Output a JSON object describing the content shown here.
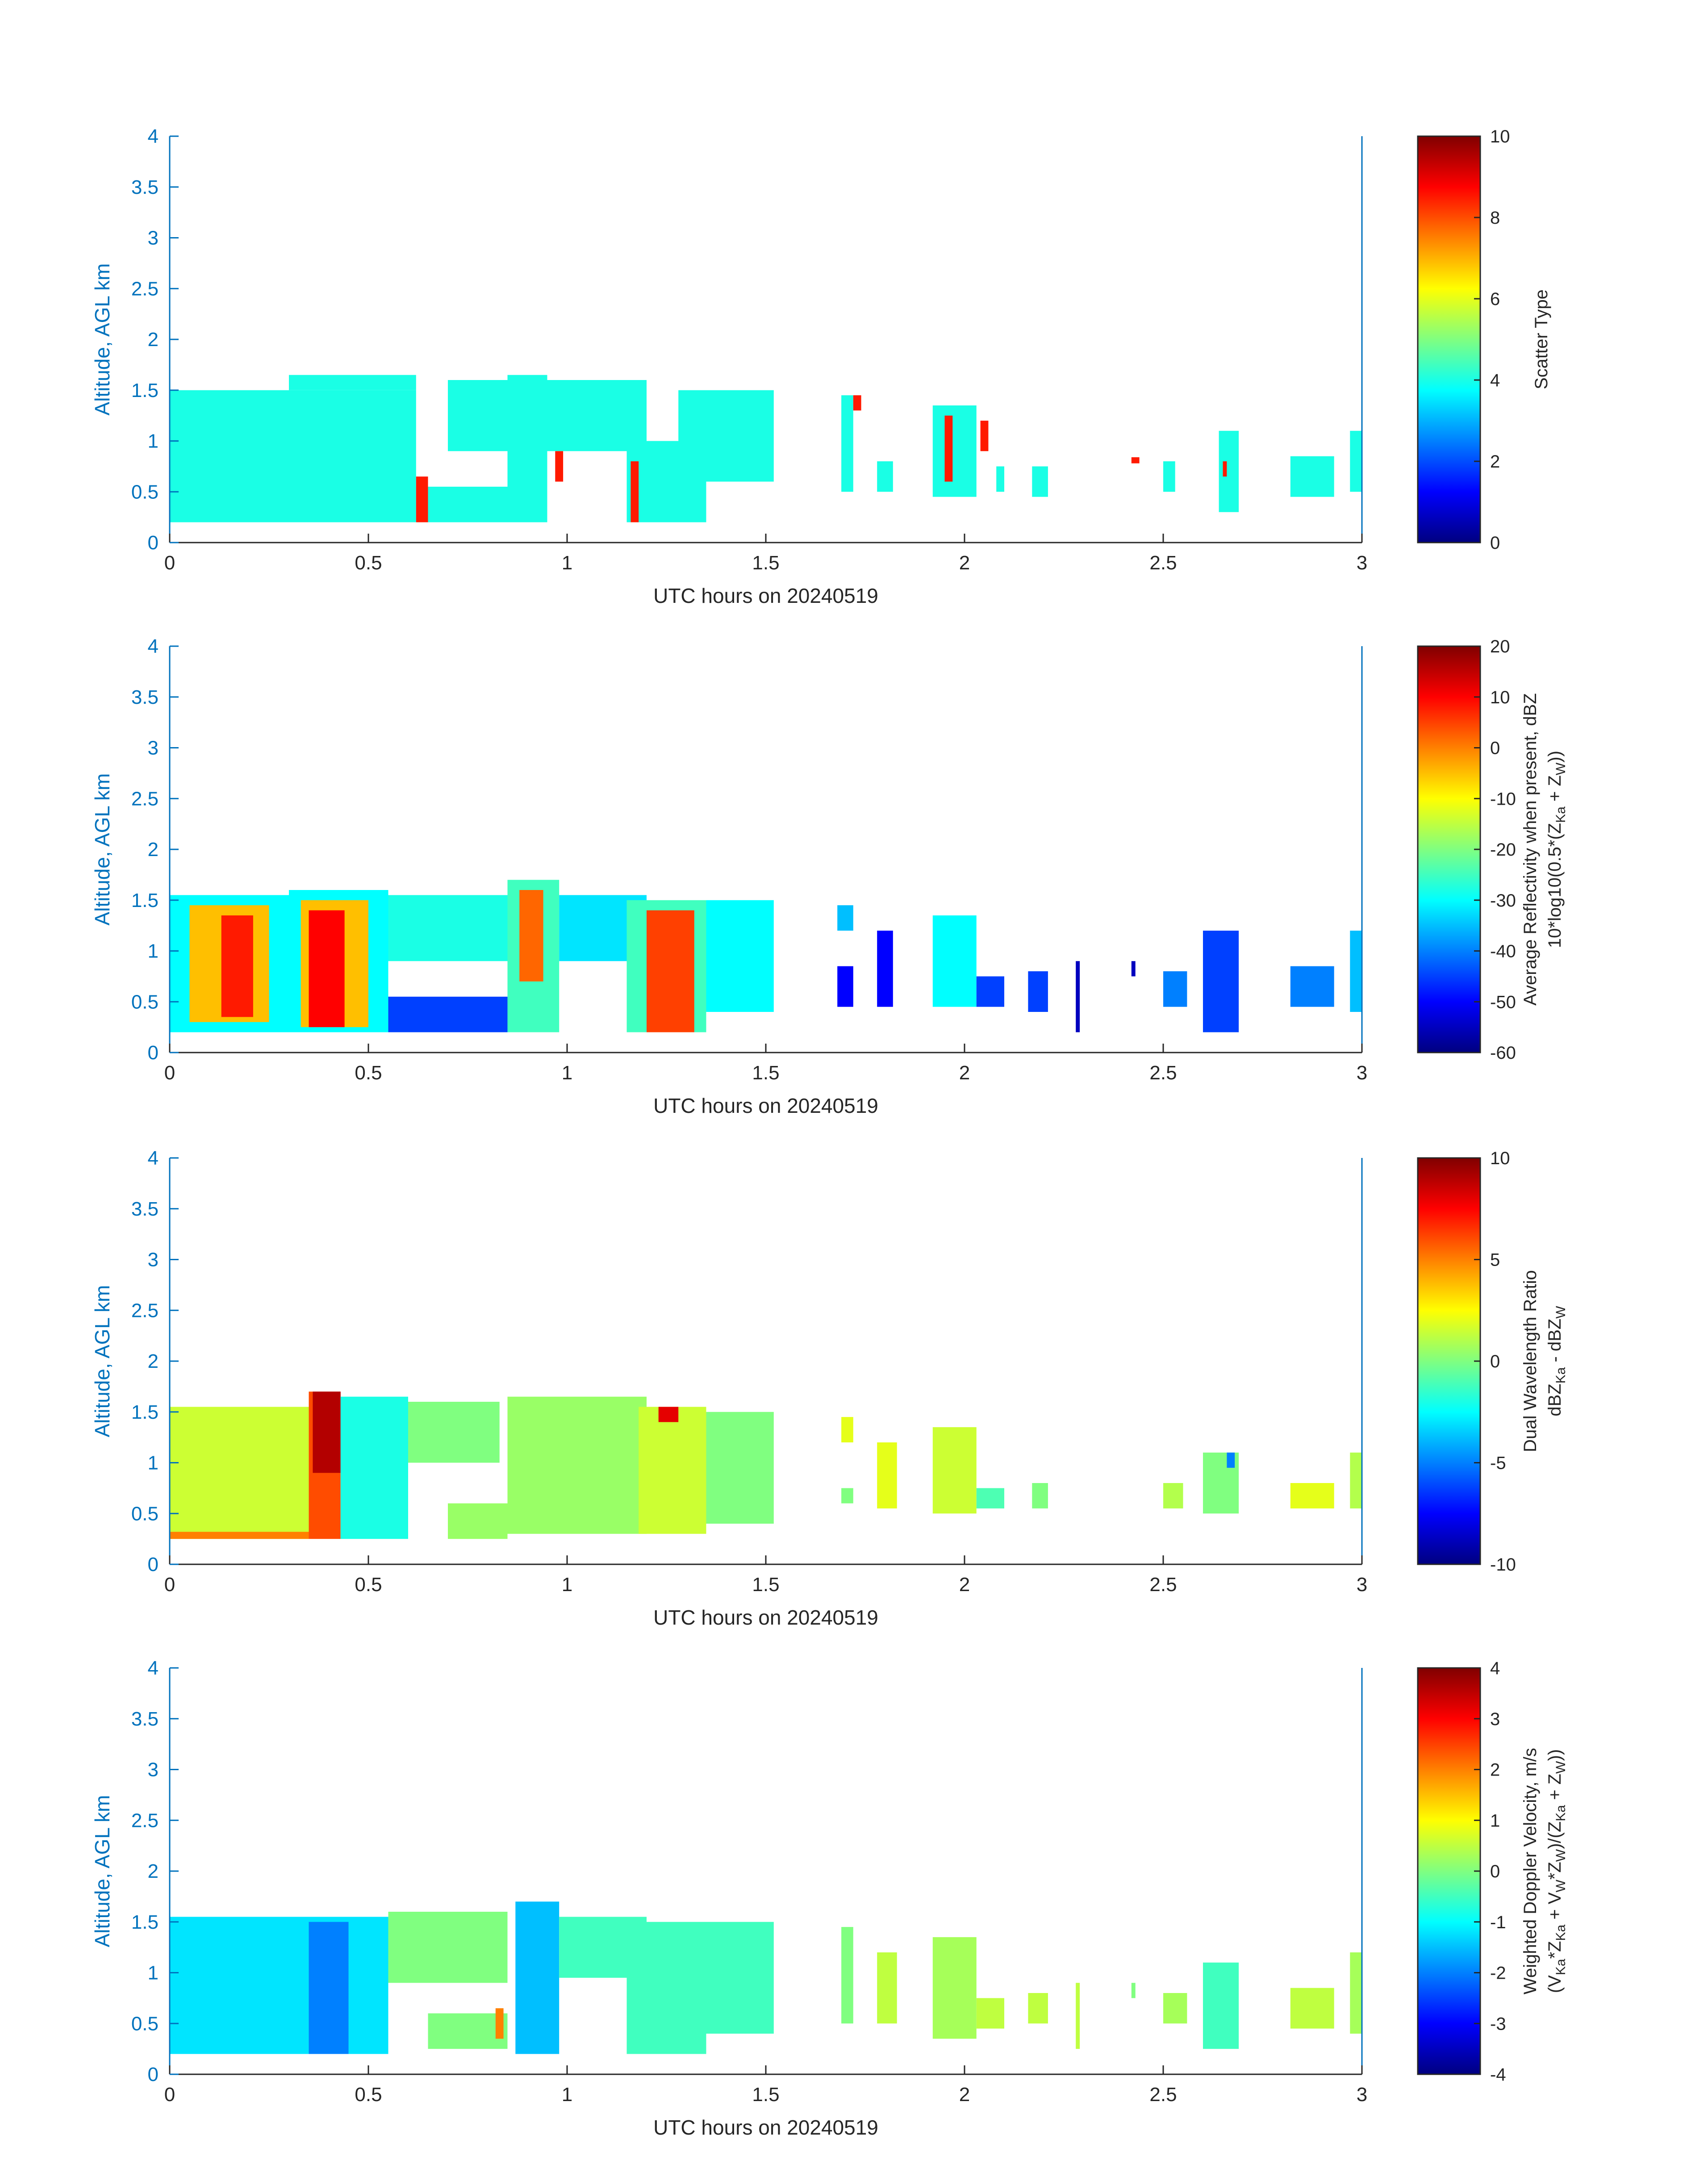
{
  "figure": {
    "accent_color": "#0072BD",
    "axis_text_color": "#262626"
  },
  "chart_data": [
    {
      "type": "heatmap",
      "xlabel": "UTC hours on 20240519",
      "ylabel": "Altitude, AGL km",
      "xlim": [
        0,
        3
      ],
      "ylim": [
        0,
        4
      ],
      "xticks": [
        "0",
        "0.5",
        "1",
        "1.5",
        "2",
        "2.5",
        "3"
      ],
      "yticks": [
        "0",
        "0.5",
        "1",
        "1.5",
        "2",
        "2.5",
        "3",
        "3.5",
        "4"
      ],
      "colorbar": {
        "label_lines": [
          "Scatter Type"
        ],
        "range": [
          0,
          10
        ],
        "ticks": [
          "0",
          "2",
          "4",
          "6",
          "8",
          "10"
        ],
        "colormap": "jet"
      },
      "regions": [
        {
          "x0": 0.0,
          "x1": 0.62,
          "y0": 0.2,
          "y1": 1.5,
          "value": 4
        },
        {
          "x0": 0.3,
          "x1": 0.62,
          "y0": 1.5,
          "y1": 1.65,
          "value": 4
        },
        {
          "x0": 0.62,
          "x1": 0.85,
          "y0": 0.2,
          "y1": 0.55,
          "value": 4
        },
        {
          "x0": 0.7,
          "x1": 0.88,
          "y0": 0.9,
          "y1": 1.6,
          "value": 4
        },
        {
          "x0": 0.85,
          "x1": 0.95,
          "y0": 0.2,
          "y1": 1.65,
          "value": 4
        },
        {
          "x0": 0.95,
          "x1": 1.2,
          "y0": 0.9,
          "y1": 1.6,
          "value": 4
        },
        {
          "x0": 1.15,
          "x1": 1.35,
          "y0": 0.2,
          "y1": 1.0,
          "value": 4
        },
        {
          "x0": 1.28,
          "x1": 1.52,
          "y0": 0.6,
          "y1": 1.5,
          "value": 4
        },
        {
          "x0": 1.69,
          "x1": 1.72,
          "y0": 0.5,
          "y1": 1.45,
          "value": 4
        },
        {
          "x0": 1.78,
          "x1": 1.82,
          "y0": 0.5,
          "y1": 0.8,
          "value": 4
        },
        {
          "x0": 1.92,
          "x1": 2.03,
          "y0": 0.45,
          "y1": 1.35,
          "value": 4
        },
        {
          "x0": 2.08,
          "x1": 2.1,
          "y0": 0.5,
          "y1": 0.75,
          "value": 4
        },
        {
          "x0": 2.17,
          "x1": 2.21,
          "y0": 0.45,
          "y1": 0.75,
          "value": 4
        },
        {
          "x0": 2.5,
          "x1": 2.53,
          "y0": 0.5,
          "y1": 0.8,
          "value": 4
        },
        {
          "x0": 2.64,
          "x1": 2.69,
          "y0": 0.3,
          "y1": 1.1,
          "value": 4
        },
        {
          "x0": 2.82,
          "x1": 2.93,
          "y0": 0.45,
          "y1": 0.85,
          "value": 4
        },
        {
          "x0": 2.97,
          "x1": 3.0,
          "y0": 0.5,
          "y1": 1.1,
          "value": 4
        },
        {
          "x0": 0.62,
          "x1": 0.65,
          "y0": 0.2,
          "y1": 0.65,
          "value": 8.5
        },
        {
          "x0": 0.97,
          "x1": 0.99,
          "y0": 0.6,
          "y1": 0.9,
          "value": 8.5
        },
        {
          "x0": 1.16,
          "x1": 1.18,
          "y0": 0.2,
          "y1": 0.8,
          "value": 8.5
        },
        {
          "x0": 1.72,
          "x1": 1.74,
          "y0": 1.3,
          "y1": 1.45,
          "value": 8.5
        },
        {
          "x0": 1.95,
          "x1": 1.97,
          "y0": 0.6,
          "y1": 1.25,
          "value": 8.5
        },
        {
          "x0": 2.04,
          "x1": 2.06,
          "y0": 0.9,
          "y1": 1.2,
          "value": 8.5
        },
        {
          "x0": 2.42,
          "x1": 2.44,
          "y0": 0.78,
          "y1": 0.84,
          "value": 8.5
        },
        {
          "x0": 2.65,
          "x1": 2.66,
          "y0": 0.65,
          "y1": 0.8,
          "value": 8.5
        }
      ]
    },
    {
      "type": "heatmap",
      "xlabel": "UTC hours on 20240519",
      "ylabel": "Altitude, AGL km",
      "xlim": [
        0,
        3
      ],
      "ylim": [
        0,
        4
      ],
      "xticks": [
        "0",
        "0.5",
        "1",
        "1.5",
        "2",
        "2.5",
        "3"
      ],
      "yticks": [
        "0",
        "0.5",
        "1",
        "1.5",
        "2",
        "2.5",
        "3",
        "3.5",
        "4"
      ],
      "colorbar": {
        "label_lines": [
          "Average Reflectivity when present, dBZ",
          "10*log10(0.5*(Z",
          "Ka",
          " + Z",
          "W",
          "))"
        ],
        "range": [
          -60,
          20
        ],
        "ticks": [
          "-60",
          "-50",
          "-40",
          "-30",
          "-20",
          "-10",
          "0",
          "10",
          "20"
        ],
        "colormap": "jet"
      },
      "regions": [
        {
          "x0": 0.0,
          "x1": 0.3,
          "y0": 0.2,
          "y1": 1.55,
          "value": -30
        },
        {
          "x0": 0.05,
          "x1": 0.25,
          "y0": 0.3,
          "y1": 1.45,
          "value": -5
        },
        {
          "x0": 0.13,
          "x1": 0.21,
          "y0": 0.35,
          "y1": 1.35,
          "value": 8
        },
        {
          "x0": 0.3,
          "x1": 0.55,
          "y0": 0.2,
          "y1": 1.6,
          "value": -30
        },
        {
          "x0": 0.33,
          "x1": 0.5,
          "y0": 0.25,
          "y1": 1.5,
          "value": -5
        },
        {
          "x0": 0.35,
          "x1": 0.44,
          "y0": 0.25,
          "y1": 1.4,
          "value": 10
        },
        {
          "x0": 0.55,
          "x1": 0.85,
          "y0": 0.9,
          "y1": 1.55,
          "value": -28
        },
        {
          "x0": 0.55,
          "x1": 0.85,
          "y0": 0.2,
          "y1": 0.55,
          "value": -45
        },
        {
          "x0": 0.85,
          "x1": 0.98,
          "y0": 0.2,
          "y1": 1.7,
          "value": -25
        },
        {
          "x0": 0.88,
          "x1": 0.94,
          "y0": 0.7,
          "y1": 1.6,
          "value": 2
        },
        {
          "x0": 0.98,
          "x1": 1.2,
          "y0": 0.9,
          "y1": 1.55,
          "value": -32
        },
        {
          "x0": 1.15,
          "x1": 1.35,
          "y0": 0.2,
          "y1": 1.5,
          "value": -25
        },
        {
          "x0": 1.2,
          "x1": 1.32,
          "y0": 0.2,
          "y1": 1.4,
          "value": 5
        },
        {
          "x0": 1.35,
          "x1": 1.52,
          "y0": 0.4,
          "y1": 1.5,
          "value": -30
        },
        {
          "x0": 1.68,
          "x1": 1.72,
          "y0": 1.2,
          "y1": 1.45,
          "value": -35
        },
        {
          "x0": 1.68,
          "x1": 1.72,
          "y0": 0.45,
          "y1": 0.85,
          "value": -50
        },
        {
          "x0": 1.78,
          "x1": 1.82,
          "y0": 0.45,
          "y1": 1.2,
          "value": -50
        },
        {
          "x0": 1.92,
          "x1": 2.03,
          "y0": 0.45,
          "y1": 1.35,
          "value": -30
        },
        {
          "x0": 2.03,
          "x1": 2.1,
          "y0": 0.45,
          "y1": 0.75,
          "value": -45
        },
        {
          "x0": 2.16,
          "x1": 2.21,
          "y0": 0.4,
          "y1": 0.8,
          "value": -45
        },
        {
          "x0": 2.28,
          "x1": 2.29,
          "y0": 0.2,
          "y1": 0.9,
          "value": -55
        },
        {
          "x0": 2.42,
          "x1": 2.43,
          "y0": 0.75,
          "y1": 0.9,
          "value": -55
        },
        {
          "x0": 2.5,
          "x1": 2.56,
          "y0": 0.45,
          "y1": 0.8,
          "value": -40
        },
        {
          "x0": 2.6,
          "x1": 2.69,
          "y0": 0.2,
          "y1": 1.2,
          "value": -45
        },
        {
          "x0": 2.82,
          "x1": 2.93,
          "y0": 0.45,
          "y1": 0.85,
          "value": -40
        },
        {
          "x0": 2.97,
          "x1": 3.0,
          "y0": 0.4,
          "y1": 1.2,
          "value": -35
        }
      ]
    },
    {
      "type": "heatmap",
      "xlabel": "UTC hours on 20240519",
      "ylabel": "Altitude, AGL km",
      "xlim": [
        0,
        3
      ],
      "ylim": [
        0,
        4
      ],
      "xticks": [
        "0",
        "0.5",
        "1",
        "1.5",
        "2",
        "2.5",
        "3"
      ],
      "yticks": [
        "0",
        "0.5",
        "1",
        "1.5",
        "2",
        "2.5",
        "3",
        "3.5",
        "4"
      ],
      "colorbar": {
        "label_lines": [
          "Dual Wavelength Ratio",
          "dBZ",
          "Ka",
          " - dBZ",
          "W"
        ],
        "range": [
          -10,
          10
        ],
        "ticks": [
          "-10",
          "-5",
          "0",
          "5",
          "10"
        ],
        "colormap": "jet"
      },
      "regions": [
        {
          "x0": 0.0,
          "x1": 0.35,
          "y0": 0.25,
          "y1": 1.55,
          "value": 1.5
        },
        {
          "x0": 0.0,
          "x1": 0.35,
          "y0": 0.25,
          "y1": 0.32,
          "value": 5
        },
        {
          "x0": 0.35,
          "x1": 0.43,
          "y0": 0.25,
          "y1": 1.7,
          "value": 6
        },
        {
          "x0": 0.36,
          "x1": 0.43,
          "y0": 0.9,
          "y1": 1.7,
          "value": 9
        },
        {
          "x0": 0.43,
          "x1": 0.6,
          "y0": 0.25,
          "y1": 1.65,
          "value": -2
        },
        {
          "x0": 0.6,
          "x1": 0.83,
          "y0": 1.0,
          "y1": 1.6,
          "value": 0
        },
        {
          "x0": 0.7,
          "x1": 0.85,
          "y0": 0.25,
          "y1": 0.6,
          "value": 0.5
        },
        {
          "x0": 0.85,
          "x1": 1.2,
          "y0": 0.3,
          "y1": 1.65,
          "value": 0.5
        },
        {
          "x0": 1.18,
          "x1": 1.35,
          "y0": 0.3,
          "y1": 1.55,
          "value": 1.5
        },
        {
          "x0": 1.23,
          "x1": 1.28,
          "y0": 1.4,
          "y1": 1.55,
          "value": 8
        },
        {
          "x0": 1.35,
          "x1": 1.52,
          "y0": 0.4,
          "y1": 1.5,
          "value": 0
        },
        {
          "x0": 1.69,
          "x1": 1.72,
          "y0": 1.2,
          "y1": 1.45,
          "value": 2
        },
        {
          "x0": 1.69,
          "x1": 1.72,
          "y0": 0.6,
          "y1": 0.75,
          "value": 0
        },
        {
          "x0": 1.78,
          "x1": 1.83,
          "y0": 0.55,
          "y1": 1.2,
          "value": 2
        },
        {
          "x0": 1.92,
          "x1": 2.03,
          "y0": 0.5,
          "y1": 1.35,
          "value": 1.5
        },
        {
          "x0": 2.03,
          "x1": 2.1,
          "y0": 0.55,
          "y1": 0.75,
          "value": -1
        },
        {
          "x0": 2.17,
          "x1": 2.21,
          "y0": 0.55,
          "y1": 0.8,
          "value": 0
        },
        {
          "x0": 2.5,
          "x1": 2.55,
          "y0": 0.55,
          "y1": 0.8,
          "value": 1
        },
        {
          "x0": 2.6,
          "x1": 2.69,
          "y0": 0.5,
          "y1": 1.1,
          "value": 0
        },
        {
          "x0": 2.66,
          "x1": 2.68,
          "y0": 0.95,
          "y1": 1.1,
          "value": -5
        },
        {
          "x0": 2.82,
          "x1": 2.93,
          "y0": 0.55,
          "y1": 0.8,
          "value": 2
        },
        {
          "x0": 2.97,
          "x1": 3.0,
          "y0": 0.55,
          "y1": 1.1,
          "value": 1
        }
      ]
    },
    {
      "type": "heatmap",
      "xlabel": "UTC hours on 20240519",
      "ylabel": "Altitude, AGL km",
      "xlim": [
        0,
        3
      ],
      "ylim": [
        0,
        4
      ],
      "xticks": [
        "0",
        "0.5",
        "1",
        "1.5",
        "2",
        "2.5",
        "3"
      ],
      "yticks": [
        "0",
        "0.5",
        "1",
        "1.5",
        "2",
        "2.5",
        "3",
        "3.5",
        "4"
      ],
      "colorbar": {
        "label_lines": [
          "Weighted Doppler Velocity, m/s",
          "(V",
          "Ka",
          "*Z",
          "Ka",
          " + V",
          "W",
          "*Z",
          "W",
          ")/(Z",
          "Ka",
          " + Z",
          "W",
          "))"
        ],
        "range": [
          -4,
          4
        ],
        "ticks": [
          "-4",
          "-3",
          "-2",
          "-1",
          "0",
          "1",
          "2",
          "3",
          "4"
        ],
        "colormap": "jet"
      },
      "regions": [
        {
          "x0": 0.0,
          "x1": 0.55,
          "y0": 0.2,
          "y1": 1.55,
          "value": -1.2
        },
        {
          "x0": 0.35,
          "x1": 0.45,
          "y0": 0.2,
          "y1": 1.5,
          "value": -2.0
        },
        {
          "x0": 0.55,
          "x1": 0.85,
          "y0": 0.9,
          "y1": 1.6,
          "value": 0
        },
        {
          "x0": 0.65,
          "x1": 0.85,
          "y0": 0.25,
          "y1": 0.6,
          "value": 0
        },
        {
          "x0": 0.82,
          "x1": 0.84,
          "y0": 0.35,
          "y1": 0.65,
          "value": 2
        },
        {
          "x0": 0.87,
          "x1": 0.98,
          "y0": 0.2,
          "y1": 1.7,
          "value": -1.5
        },
        {
          "x0": 0.98,
          "x1": 1.2,
          "y0": 0.95,
          "y1": 1.55,
          "value": -0.5
        },
        {
          "x0": 1.15,
          "x1": 1.35,
          "y0": 0.2,
          "y1": 1.5,
          "value": -0.5
        },
        {
          "x0": 1.35,
          "x1": 1.52,
          "y0": 0.4,
          "y1": 1.5,
          "value": -0.5
        },
        {
          "x0": 1.69,
          "x1": 1.72,
          "y0": 0.5,
          "y1": 1.45,
          "value": 0
        },
        {
          "x0": 1.78,
          "x1": 1.83,
          "y0": 0.5,
          "y1": 1.2,
          "value": 0.5
        },
        {
          "x0": 1.92,
          "x1": 2.03,
          "y0": 0.35,
          "y1": 1.35,
          "value": 0.3
        },
        {
          "x0": 2.03,
          "x1": 2.1,
          "y0": 0.45,
          "y1": 0.75,
          "value": 0.5
        },
        {
          "x0": 2.16,
          "x1": 2.21,
          "y0": 0.5,
          "y1": 0.8,
          "value": 0.5
        },
        {
          "x0": 2.28,
          "x1": 2.29,
          "y0": 0.25,
          "y1": 0.9,
          "value": 0.5
        },
        {
          "x0": 2.42,
          "x1": 2.43,
          "y0": 0.75,
          "y1": 0.9,
          "value": 0
        },
        {
          "x0": 2.5,
          "x1": 2.56,
          "y0": 0.5,
          "y1": 0.8,
          "value": 0.3
        },
        {
          "x0": 2.6,
          "x1": 2.69,
          "y0": 0.25,
          "y1": 1.1,
          "value": -0.5
        },
        {
          "x0": 2.82,
          "x1": 2.93,
          "y0": 0.45,
          "y1": 0.85,
          "value": 0.5
        },
        {
          "x0": 2.97,
          "x1": 3.0,
          "y0": 0.4,
          "y1": 1.2,
          "value": 0.3
        }
      ]
    }
  ]
}
